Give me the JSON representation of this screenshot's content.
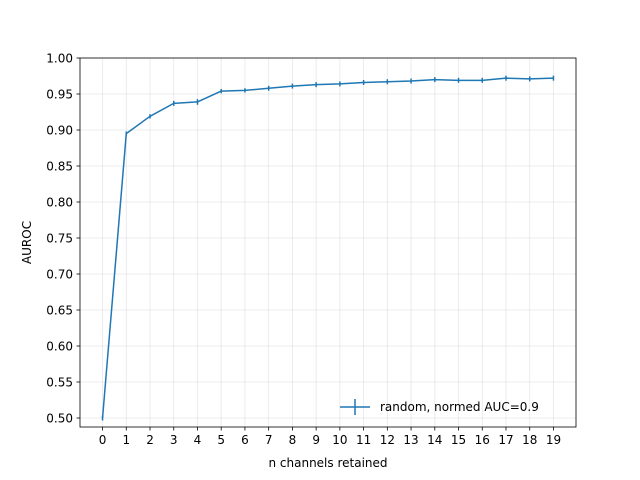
{
  "chart_data": {
    "type": "line",
    "xlabel": "n channels retained",
    "ylabel": "AUROC",
    "xlim": [
      -0.95,
      19.95
    ],
    "ylim": [
      0.4875,
      1.0
    ],
    "x_ticks": [
      0,
      1,
      2,
      3,
      4,
      5,
      6,
      7,
      8,
      9,
      10,
      11,
      12,
      13,
      14,
      15,
      16,
      17,
      18,
      19
    ],
    "y_ticks": [
      "0.50",
      "0.55",
      "0.60",
      "0.65",
      "0.70",
      "0.75",
      "0.80",
      "0.85",
      "0.90",
      "0.95",
      "1.00"
    ],
    "grid": true,
    "legend_position": "lower-right",
    "series": [
      {
        "name": "random, normed AUC=0.9",
        "color": "#1f77b4",
        "x": [
          0,
          1,
          2,
          3,
          4,
          5,
          6,
          7,
          8,
          9,
          10,
          11,
          12,
          13,
          14,
          15,
          16,
          17,
          18,
          19
        ],
        "y": [
          0.5,
          0.895,
          0.919,
          0.937,
          0.939,
          0.954,
          0.955,
          0.958,
          0.961,
          0.963,
          0.964,
          0.966,
          0.967,
          0.968,
          0.97,
          0.969,
          0.969,
          0.972,
          0.971,
          0.972
        ],
        "yerr": [
          0.0,
          0.003,
          0.003,
          0.002,
          0.004,
          0.003,
          0.003,
          0.001,
          0.001,
          0.002,
          0.001,
          0.002,
          0.001,
          0.002,
          0.001,
          0.001,
          0.001,
          0.001,
          0.001,
          0.001
        ]
      }
    ]
  }
}
